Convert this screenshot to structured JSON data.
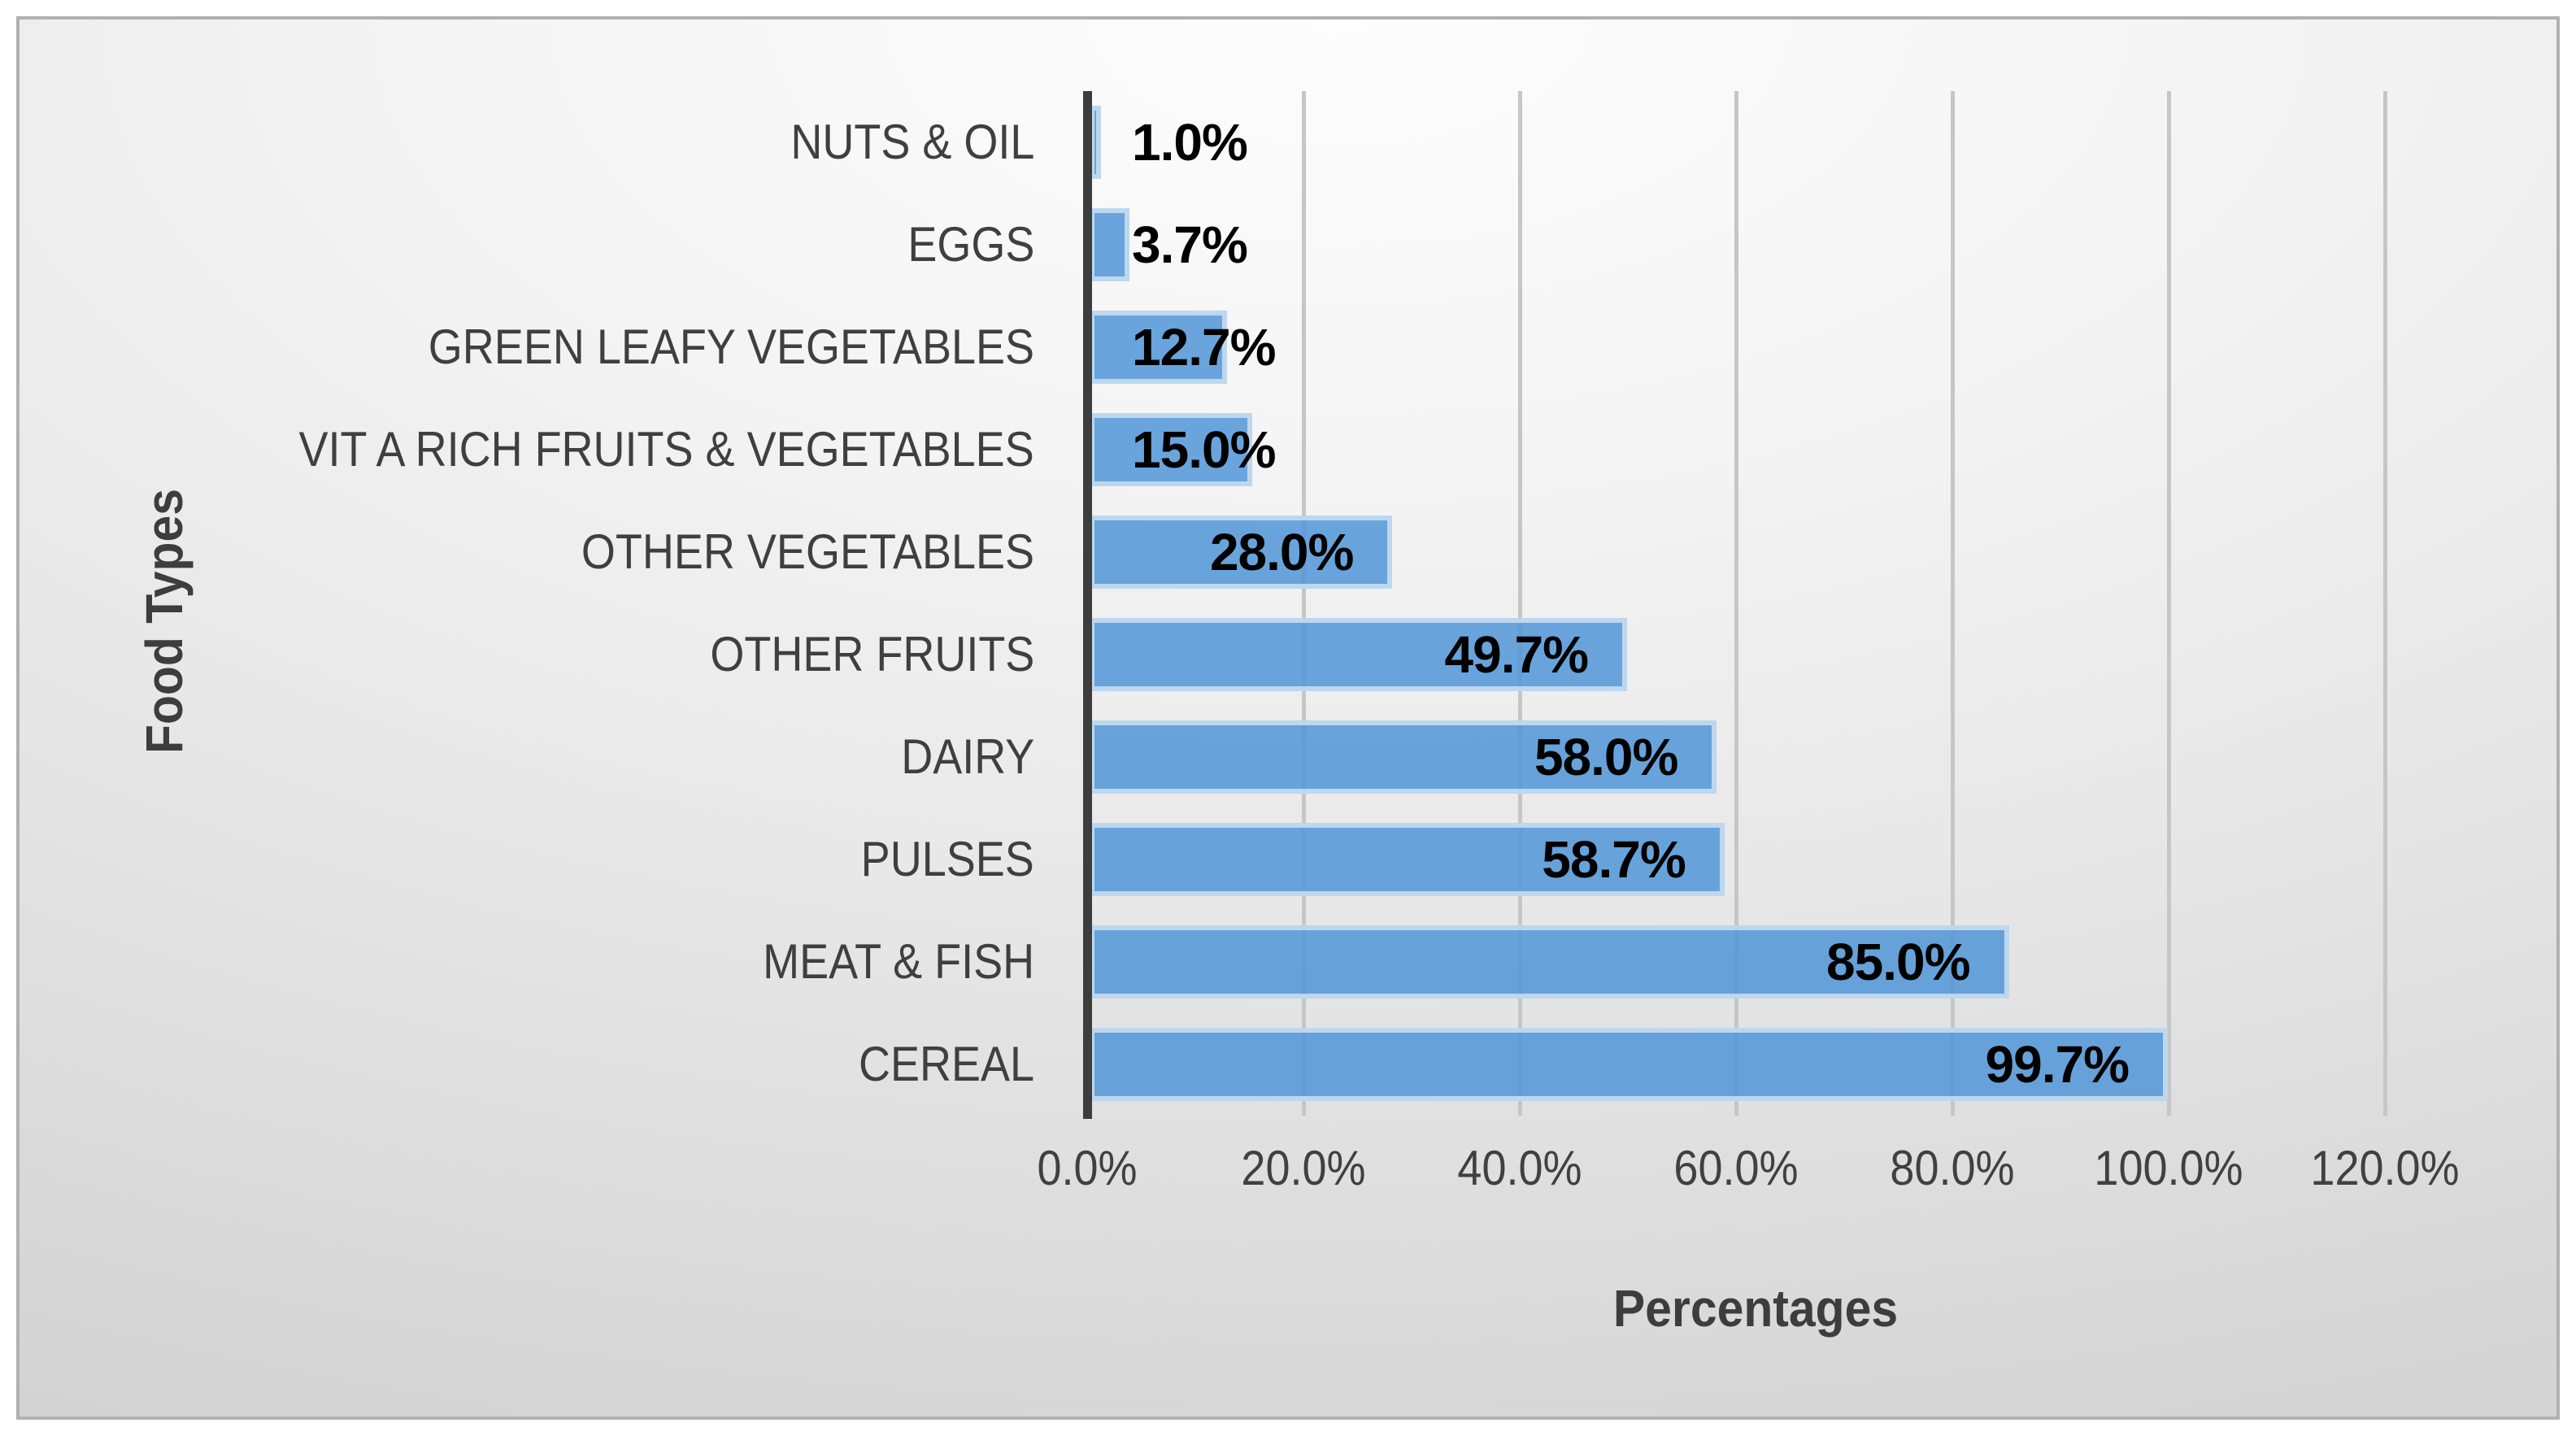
{
  "chart_data": {
    "type": "bar",
    "orientation": "horizontal",
    "title": "",
    "xlabel": "Percentages",
    "ylabel": "Food Types",
    "xlim": [
      0,
      120
    ],
    "grid": true,
    "legend": false,
    "categories": [
      "NUTS & OIL",
      "EGGS",
      "GREEN LEAFY VEGETABLES",
      "VIT A RICH FRUITS & VEGETABLES",
      "OTHER VEGETABLES",
      "OTHER FRUITS",
      "DAIRY",
      "PULSES",
      "MEAT & FISH",
      "CEREAL"
    ],
    "values": [
      1.0,
      3.7,
      12.7,
      15.0,
      28.0,
      49.7,
      58.0,
      58.7,
      85.0,
      99.7
    ],
    "data_labels": [
      "1.0%",
      "3.7%",
      "12.7%",
      "15.0%",
      "28.0%",
      "49.7%",
      "58.0%",
      "58.7%",
      "85.0%",
      "99.7%"
    ],
    "xtick_values": [
      0,
      20,
      40,
      60,
      80,
      100,
      120
    ],
    "xtick_labels": [
      "0.0%",
      "20.0%",
      "40.0%",
      "60.0%",
      "80.0%",
      "100.0%",
      "120.0%"
    ],
    "colors": {
      "bar_fill": "#74A9DB",
      "bar_border": "#BDD7EE",
      "axis_line": "#3D3D3D",
      "gridline": "#C6C6C6",
      "data_label_text": "#000000",
      "axis_text": "#404040"
    }
  }
}
